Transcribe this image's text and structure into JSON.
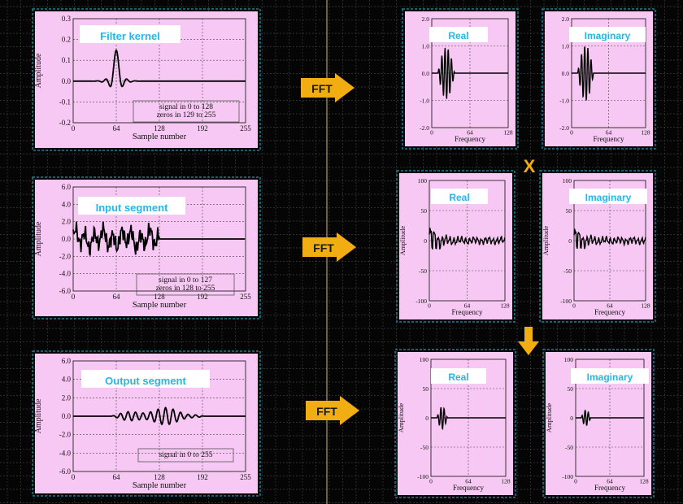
{
  "colors": {
    "background": "#050505",
    "grid": "#3c3c3c",
    "divider": "#b9a24a",
    "panel": "#f8c8f4",
    "panel_frame": "#1f7f93",
    "title": "#27b6e6",
    "arrow": "#f2ad12",
    "arrow_text": "#1a1a1a",
    "multiply": "#f2ad12",
    "trace": "#000000"
  },
  "operators": {
    "fft_label": "FFT",
    "multiply_label": "X",
    "down_arrow": "down-arrow-icon"
  },
  "left_panels": [
    {
      "id": "filter-kernel",
      "title": "Filter kernel",
      "ylabel": "Amplitude",
      "xlabel": "Sample number",
      "yticks": [
        "0.3",
        "0.2",
        "0.1",
        "0.0",
        "-0.1",
        "-0.2"
      ],
      "xticks": [
        "0",
        "64",
        "128",
        "192",
        "255"
      ],
      "annotation_lines": [
        "signal in 0 to 128",
        "zeros in 129 to 255"
      ]
    },
    {
      "id": "input-segment",
      "title": "Input segment",
      "ylabel": "Amplitude",
      "xlabel": "Sample number",
      "yticks": [
        "6.0",
        "4.0",
        "2.0",
        "0.0",
        "-2.0",
        "-4.0",
        "-6.0"
      ],
      "xticks": [
        "0",
        "64",
        "128",
        "192",
        "255"
      ],
      "annotation_lines": [
        "signal in 0 to 127",
        "zeros in 128 to 255"
      ]
    },
    {
      "id": "output-segment",
      "title": "Output segment",
      "ylabel": "Amplitude",
      "xlabel": "Sample number",
      "yticks": [
        "6.0",
        "4.0",
        "2.0",
        "0.0",
        "-2.0",
        "-4.0",
        "-6.0"
      ],
      "xticks": [
        "0",
        "64",
        "128",
        "192",
        "255"
      ],
      "annotation_lines": [
        "signal in 0 to 255"
      ]
    }
  ],
  "spectrum_panels": [
    {
      "id": "kernel-real",
      "title": "Real",
      "ylabel": "",
      "xlabel": "Frequency",
      "yticks": [
        "2.0",
        "1.0",
        "0.0",
        "-1.0",
        "-2.0"
      ],
      "xticks": [
        "0",
        "64",
        "128"
      ]
    },
    {
      "id": "kernel-imaginary",
      "title": "Imaginary",
      "ylabel": "",
      "xlabel": "Frequency",
      "yticks": [
        "2.0",
        "1.0",
        "0.0",
        "-1.0",
        "-2.0"
      ],
      "xticks": [
        "0",
        "64",
        "128"
      ]
    },
    {
      "id": "input-real",
      "title": "Real",
      "ylabel": "Amplitude",
      "xlabel": "Frequency",
      "yticks": [
        "100",
        "50",
        "0",
        "-50",
        "-100"
      ],
      "xticks": [
        "0",
        "64",
        "128"
      ]
    },
    {
      "id": "input-imaginary",
      "title": "Imaginary",
      "ylabel": "Amplitude",
      "xlabel": "Frequency",
      "yticks": [
        "100",
        "50",
        "0",
        "-50",
        "-100"
      ],
      "xticks": [
        "0",
        "64",
        "128"
      ]
    },
    {
      "id": "output-real",
      "title": "Real",
      "ylabel": "Amplitude",
      "xlabel": "Frequency",
      "yticks": [
        "100",
        "50",
        "0",
        "-50",
        "-100"
      ],
      "xticks": [
        "0",
        "64",
        "128"
      ]
    },
    {
      "id": "output-imaginary",
      "title": "Imaginary",
      "ylabel": "Amplitude",
      "xlabel": "Frequency",
      "yticks": [
        "100",
        "50",
        "0",
        "-50",
        "-100"
      ],
      "xticks": [
        "0",
        "64",
        "128"
      ]
    }
  ]
}
